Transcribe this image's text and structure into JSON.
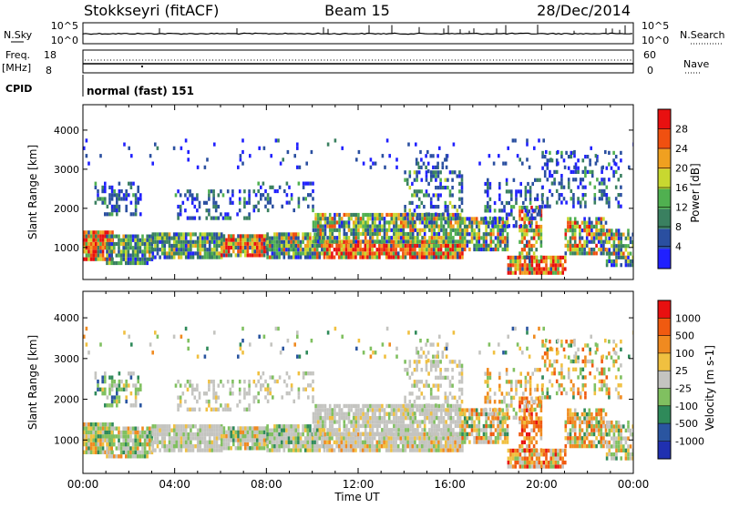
{
  "header": {
    "title": "Stokkseyri (fitACF)",
    "beam": "Beam 15",
    "date": "28/Dec/2014"
  },
  "aux_panel": {
    "nsky_label": "N.Sky",
    "nsky_ticks": [
      "10^5",
      "10^0"
    ],
    "nsearch_label": "N.Search",
    "nsearch_ticks": [
      "10^5",
      "10^0"
    ],
    "freq_label": "Freq.",
    "freq_unit": "[MHz]",
    "freq_ticks": [
      "18",
      "8"
    ],
    "nave_label": "Nave",
    "nave_ticks": [
      "60",
      "0"
    ],
    "cpid_label": "CPID",
    "cpid_value": "normal (fast) 151"
  },
  "colors": {
    "power_scale": [
      "#2020ff",
      "#2a4fa0",
      "#3a8060",
      "#50b050",
      "#c8d830",
      "#f0a020",
      "#f05010",
      "#e81010"
    ],
    "velocity_scale": [
      "#2030b0",
      "#2a55a0",
      "#2f8a5a",
      "#80c060",
      "#c4c4c0",
      "#f0c040",
      "#f08a20",
      "#f05a10",
      "#e81010"
    ]
  },
  "chart_data": [
    {
      "type": "heatmap",
      "name": "power",
      "ylabel": "Slant Range [km]",
      "xlabel": "",
      "colorbar_label": "Power [dB]",
      "colorbar_ticks": [
        "28",
        "24",
        "20",
        "16",
        "12",
        "8",
        "4"
      ],
      "ylim": [
        180,
        4650
      ],
      "y_ticks": [
        1000,
        2000,
        3000,
        4000
      ],
      "xlim": [
        0,
        24
      ],
      "grid": false
    },
    {
      "type": "heatmap",
      "name": "velocity",
      "ylabel": "Slant Range [km]",
      "xlabel": "Time UT",
      "colorbar_label": "Velocity [m s-1]",
      "colorbar_ticks": [
        "1000",
        "500",
        "100",
        "25",
        "-25",
        "-100",
        "-500",
        "-1000"
      ],
      "ylim": [
        180,
        4650
      ],
      "y_ticks": [
        1000,
        2000,
        3000,
        4000
      ],
      "xlim": [
        0,
        24
      ],
      "x_ticks": [
        "00:00",
        "04:00",
        "08:00",
        "12:00",
        "16:00",
        "20:00",
        "00:00"
      ],
      "grid": false
    }
  ]
}
